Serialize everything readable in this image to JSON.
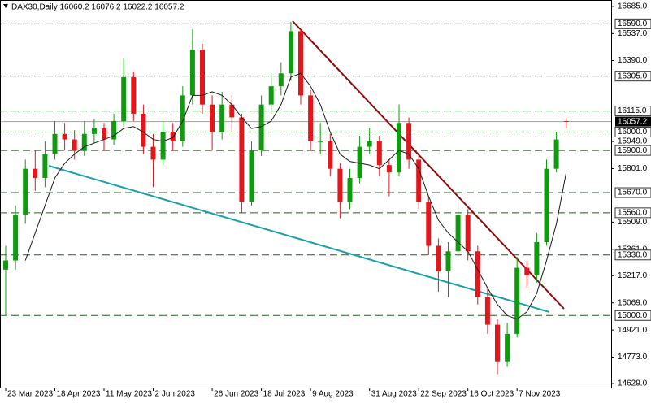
{
  "chart_data": {
    "type": "candlestick",
    "title": "DAX30,Daily  16060.2 16076.2 16022.2 16057.2",
    "categories": [
      "23 Mar 2023",
      null,
      null,
      null,
      null,
      "18 Apr 2023",
      null,
      null,
      null,
      null,
      "11 May 2023",
      null,
      null,
      null,
      null,
      "2 Jun 2023",
      null,
      null,
      null,
      null,
      null,
      "26 Jun 2023",
      null,
      null,
      null,
      null,
      "18 Jul 2023",
      null,
      null,
      null,
      null,
      "9 Aug 2023",
      null,
      null,
      null,
      null,
      null,
      "31 Aug 2023",
      null,
      null,
      null,
      null,
      "22 Sep 2023",
      null,
      null,
      null,
      null,
      "16 Oct 2023",
      null,
      null,
      null,
      null,
      "7 Nov 2023",
      null,
      null,
      null,
      null,
      null
    ],
    "open": [
      15250,
      15300,
      15550,
      15800,
      15750,
      15880,
      15990,
      15960,
      15900,
      15990,
      16020,
      15960,
      16060,
      16300,
      16100,
      15920,
      15850,
      16000,
      15950,
      16200,
      16450,
      16150,
      16000,
      16150,
      16080,
      15620,
      15900,
      16150,
      16250,
      16320,
      16550,
      16200,
      15950,
      15950,
      15800,
      15620,
      15750,
      15920,
      15950,
      15820,
      15780,
      16050,
      15850,
      15620,
      15380,
      15240,
      15350,
      15550,
      15350,
      15100,
      14950,
      14750,
      14900,
      15260,
      15220,
      15400,
      15800,
      16060.2
    ],
    "high": [
      15380,
      15600,
      15850,
      15900,
      15950,
      16060,
      16050,
      16010,
      16060,
      16070,
      16050,
      16100,
      16400,
      16330,
      16150,
      15990,
      16060,
      16050,
      16250,
      16560,
      16480,
      16200,
      16220,
      16200,
      16100,
      15950,
      16200,
      16320,
      16380,
      16600,
      16560,
      16230,
      16050,
      15990,
      15830,
      15800,
      15980,
      16020,
      15980,
      15850,
      16150,
      16080,
      15880,
      15650,
      15420,
      15400,
      15650,
      15580,
      15380,
      15150,
      14980,
      14960,
      15320,
      15300,
      15450,
      15850,
      16000,
      16076.2
    ],
    "low": [
      15000,
      15250,
      15500,
      15680,
      15700,
      15850,
      15900,
      15850,
      15870,
      15940,
      15900,
      15930,
      16030,
      16060,
      15880,
      15700,
      15820,
      15900,
      15920,
      16150,
      16100,
      15900,
      15960,
      16000,
      15560,
      15600,
      15870,
      16100,
      16200,
      16280,
      16150,
      15900,
      15880,
      15760,
      15530,
      15580,
      15720,
      15880,
      15760,
      15650,
      15760,
      15800,
      15580,
      15330,
      15130,
      15100,
      15320,
      15300,
      15060,
      14900,
      14680,
      14720,
      14880,
      15150,
      15180,
      15380,
      15780,
      16022.2
    ],
    "close": [
      15300,
      15550,
      15800,
      15750,
      15880,
      15990,
      15960,
      15900,
      15990,
      16020,
      15960,
      16060,
      16300,
      16100,
      15920,
      15850,
      16000,
      15950,
      16200,
      16450,
      16150,
      16000,
      16150,
      16080,
      15620,
      15900,
      16150,
      16250,
      16320,
      16550,
      16200,
      15950,
      15950,
      15800,
      15620,
      15750,
      15920,
      15950,
      15820,
      15780,
      16050,
      15850,
      15620,
      15380,
      15240,
      15350,
      15550,
      15350,
      15100,
      14950,
      14750,
      14900,
      15260,
      15220,
      15400,
      15800,
      15960,
      16057.2
    ],
    "ma": [
      null,
      null,
      15300,
      15450,
      15600,
      15750,
      15830,
      15880,
      15920,
      15940,
      15960,
      15980,
      16020,
      16030,
      16000,
      15960,
      15950,
      15970,
      16060,
      16200,
      16200,
      16220,
      16200,
      16150,
      16080,
      16020,
      16030,
      16060,
      16150,
      16300,
      16320,
      16250,
      16150,
      16000,
      15880,
      15840,
      15830,
      15820,
      15800,
      15850,
      15900,
      15880,
      15800,
      15650,
      15520,
      15450,
      15400,
      15350,
      15250,
      15150,
      15060,
      15000,
      14980,
      15020,
      15120,
      15300,
      15500,
      15780
    ],
    "up_color": "#109a10",
    "down_color": "#e3161b",
    "ma_color": "#1a1a1a",
    "ylim": [
      14607,
      16720
    ],
    "yticks": [
      {
        "value": 16685,
        "label": "16685.0"
      },
      {
        "value": 16537,
        "label": "16537.0"
      },
      {
        "value": 16390,
        "label": "16390.0"
      },
      {
        "value": 15949,
        "label": "15949.0"
      },
      {
        "value": 15801,
        "label": "15801.0"
      },
      {
        "value": 15509,
        "label": "15509.0"
      },
      {
        "value": 15361,
        "label": "15361.0"
      },
      {
        "value": 15217,
        "label": "15217.0"
      },
      {
        "value": 15069,
        "label": "15069.0"
      },
      {
        "value": 14921,
        "label": "14921.0"
      },
      {
        "value": 14773,
        "label": "14773.0"
      },
      {
        "value": 14629,
        "label": "14629.0"
      }
    ],
    "levels": [
      {
        "value": 16590,
        "label": "16590.0"
      },
      {
        "value": 16305,
        "label": "16305.0"
      },
      {
        "value": 16115,
        "label": "16115.0"
      },
      {
        "value": 16000,
        "label": "16000.0"
      },
      {
        "value": 15900,
        "label": "15900.0"
      },
      {
        "value": 15670,
        "label": "15670.0"
      },
      {
        "value": 15560,
        "label": "15560.0"
      },
      {
        "value": 15330,
        "label": "15330.0"
      },
      {
        "value": 15000,
        "label": "15000.0"
      }
    ],
    "level_color": "#235a23",
    "price": 16057.2
  }
}
